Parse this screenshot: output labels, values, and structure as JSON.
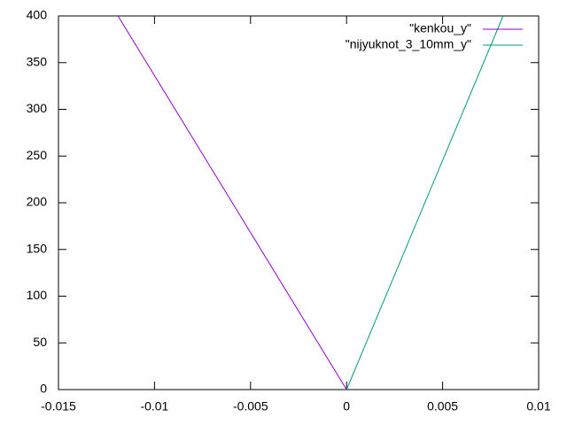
{
  "chart_data": {
    "type": "line",
    "series": [
      {
        "name": "\"kenkou_y\"",
        "color": "#9400d3",
        "x": [
          -0.0119,
          0
        ],
        "values": [
          400,
          0
        ]
      },
      {
        "name": "\"nijyuknot_3_10mm_y\"",
        "color": "#009e73",
        "x": [
          0,
          0.00815
        ],
        "values": [
          0,
          400
        ]
      }
    ],
    "xlim": [
      -0.015,
      0.01
    ],
    "xticks": [
      -0.015,
      -0.01,
      -0.005,
      0,
      0.005,
      0.01
    ],
    "ylim": [
      0,
      400
    ],
    "yticks": [
      0,
      50,
      100,
      150,
      200,
      250,
      300,
      350,
      400
    ],
    "grid": false,
    "legend": "top-right"
  }
}
